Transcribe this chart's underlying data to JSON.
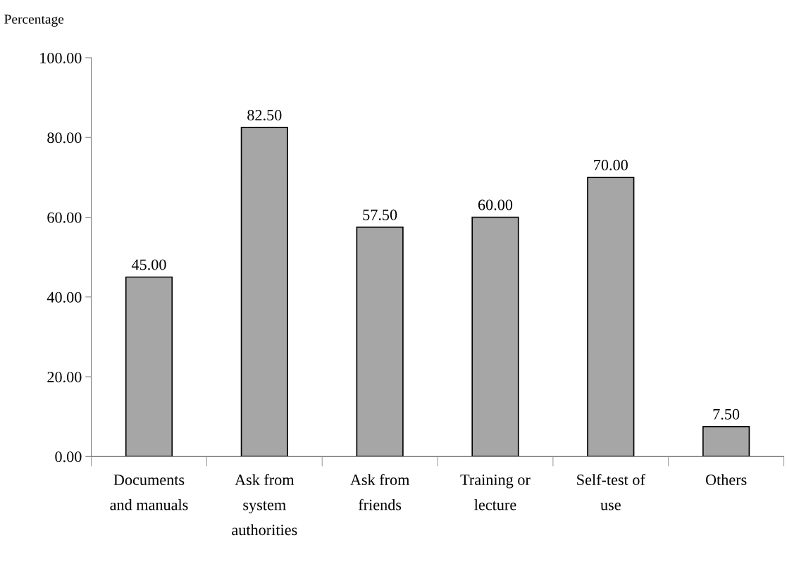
{
  "chart_data": {
    "type": "bar",
    "ylabel": "Percentage",
    "categories": [
      "Documents\nand manuals",
      "Ask from\nsystem\nauthorities",
      "Ask from\nfriends",
      "Training or\nlecture",
      "Self-test of\nuse",
      "Others"
    ],
    "values": [
      45,
      82.5,
      57.5,
      60,
      70,
      7.5
    ],
    "value_labels": [
      "45.00",
      "82.50",
      "57.50",
      "60.00",
      "70.00",
      "7.50"
    ],
    "color": "#a6a6a6",
    "ylim": [
      0,
      100
    ],
    "yticks": [
      {
        "value": 0,
        "label": "0.00"
      },
      {
        "value": 20,
        "label": "20.00"
      },
      {
        "value": 40,
        "label": "40.00"
      },
      {
        "value": 60,
        "label": "60.00"
      },
      {
        "value": 80,
        "label": "80.00"
      },
      {
        "value": 100,
        "label": "100.00"
      }
    ],
    "grid": false,
    "legend": false
  }
}
